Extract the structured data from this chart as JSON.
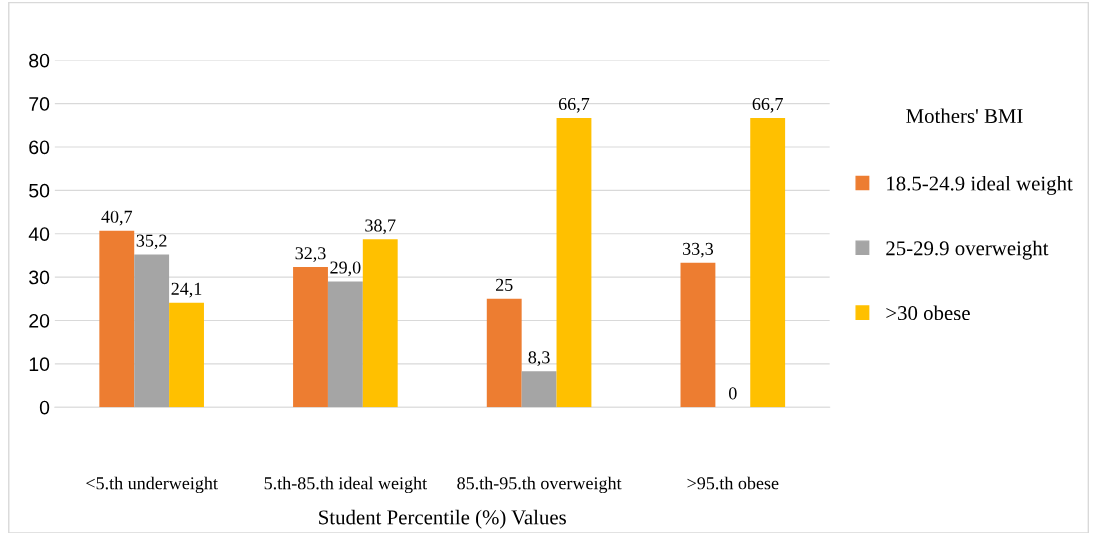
{
  "chart_data": {
    "type": "bar",
    "xlabel": "Student Percentile (%) Values",
    "legend_title": "Mothers' BMI",
    "categories": [
      "<5.th underweight",
      "5.th-85.th ideal weight",
      "85.th-95.th overweight",
      ">95.th obese"
    ],
    "series": [
      {
        "name": "18.5-24.9 ideal weight",
        "color": "#ed7d31",
        "values": [
          40.7,
          32.3,
          25,
          33.3
        ],
        "value_labels": [
          "40,7",
          "32,3",
          "25",
          "33,3"
        ]
      },
      {
        "name": "25-29.9 overweight",
        "color": "#a5a5a5",
        "values": [
          35.2,
          29.0,
          8.3,
          0
        ],
        "value_labels": [
          "35,2",
          "29,0",
          "8,3",
          "0"
        ]
      },
      {
        "name": ">30 obese",
        "color": "#ffc000",
        "values": [
          24.1,
          38.7,
          66.7,
          66.7
        ],
        "value_labels": [
          "24,1",
          "38,7",
          "66,7",
          "66,7"
        ]
      }
    ],
    "ylim": [
      0,
      80
    ],
    "yticks": [
      0,
      10,
      20,
      30,
      40,
      50,
      60,
      70,
      80
    ],
    "grid": "y",
    "legend": "right"
  }
}
